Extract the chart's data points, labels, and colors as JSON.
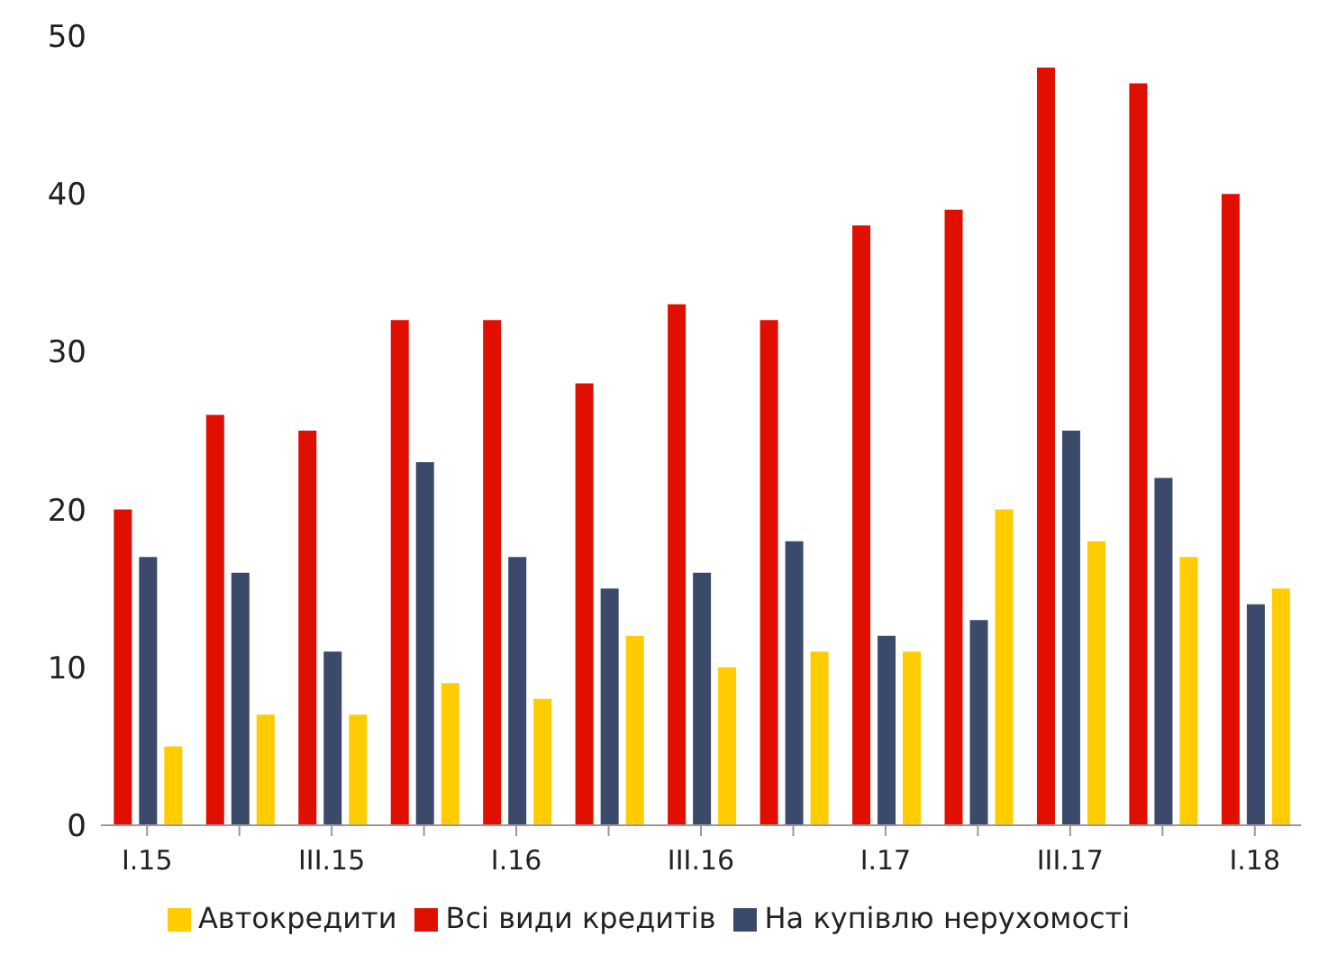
{
  "chart_data": {
    "type": "bar",
    "categories": [
      "I.15",
      null,
      "III.15",
      null,
      "I.16",
      null,
      "III.16",
      null,
      "I.17",
      null,
      "III.17",
      null,
      "I.18"
    ],
    "series": [
      {
        "name": "Всі види кредитів",
        "color": "#e00f00",
        "values": [
          20,
          26,
          25,
          32,
          32,
          28,
          33,
          32,
          38,
          39,
          48,
          47,
          40
        ]
      },
      {
        "name": "На купівлю нерухомості",
        "color": "#3b4a6b",
        "values": [
          17,
          16,
          11,
          23,
          17,
          15,
          16,
          18,
          12,
          13,
          25,
          22,
          14
        ]
      },
      {
        "name": "Автокредити",
        "color": "#ffcc00",
        "values": [
          5,
          7,
          7,
          9,
          8,
          12,
          10,
          11,
          11,
          20,
          18,
          17,
          15
        ]
      }
    ],
    "ylim": [
      0,
      50
    ],
    "yticks": [
      0,
      10,
      20,
      30,
      40,
      50
    ],
    "grid": false,
    "legend": "bottom"
  }
}
